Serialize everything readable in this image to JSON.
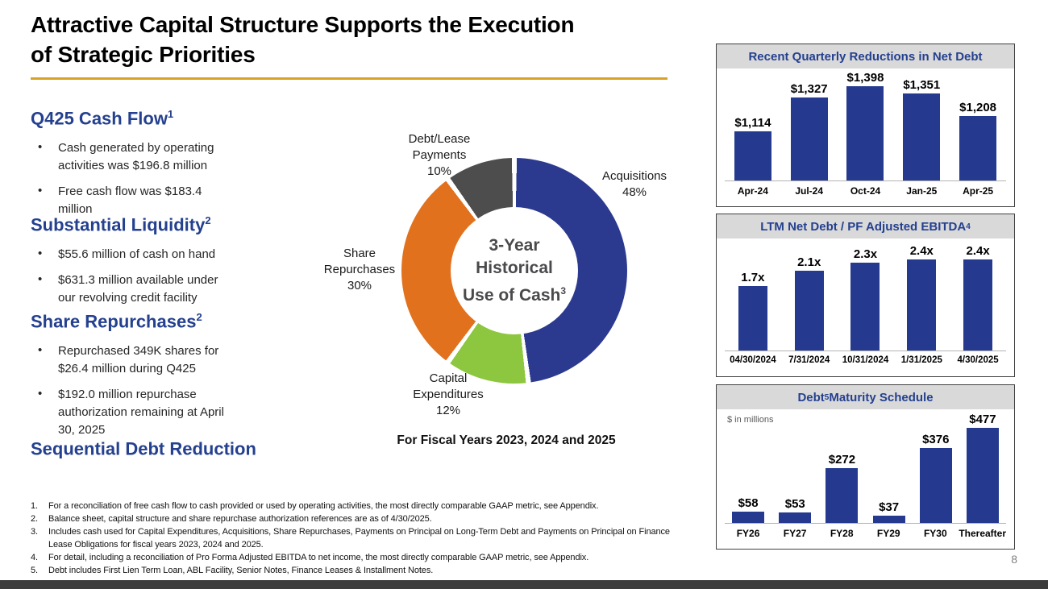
{
  "slide": {
    "title_line1": "Attractive Capital Structure Supports the Execution",
    "title_line2": "of Strategic Priorities",
    "page_number": "8"
  },
  "left_sections": [
    {
      "heading": "Q425 Cash Flow",
      "sup": "1",
      "bullets": [
        "Cash generated by operating activities was $196.8 million",
        "Free cash flow was $183.4 million"
      ]
    },
    {
      "heading": "Substantial Liquidity",
      "sup": "2",
      "bullets": [
        "$55.6 million of cash on hand",
        "$631.3 million available under our revolving credit facility"
      ]
    },
    {
      "heading": "Share Repurchases",
      "sup": "2",
      "bullets": [
        "Repurchased 349K shares for $26.4 million during Q425",
        "$192.0 million repurchase authorization remaining at April 30, 2025"
      ]
    },
    {
      "heading": "Sequential Debt Reduction",
      "sup": "",
      "bullets": []
    }
  ],
  "donut": {
    "labels": {
      "debt_lease": "Debt/Lease\nPayments\n10%",
      "acquisitions": "Acquisitions\n48%",
      "share_repurchases": "Share\nRepurchases\n30%",
      "capital_expenditures": "Capital\nExpenditures\n12%"
    },
    "center": {
      "line1": "3-Year",
      "line2": "Historical",
      "line3": "Use of Cash",
      "sup": "3"
    },
    "caption": "For Fiscal Years 2023, 2024 and 2025"
  },
  "chart_data": [
    {
      "type": "pie",
      "subtype": "donut",
      "title": "3-Year Historical Use of Cash",
      "title_sup": "3",
      "caption": "For Fiscal Years 2023, 2024 and 2025",
      "segments": [
        {
          "label": "Acquisitions",
          "pct": 48,
          "color": "#2B3A8F"
        },
        {
          "label": "Capital Expenditures",
          "pct": 12,
          "color": "#8DC63F"
        },
        {
          "label": "Share Repurchases",
          "pct": 30,
          "color": "#E2711D"
        },
        {
          "label": "Debt/Lease Payments",
          "pct": 10,
          "color": "#4D4D4D"
        }
      ],
      "start_angle": "top",
      "direction": "clockwise"
    },
    {
      "type": "bar",
      "title_pre": "Recent Quarterly Reductions in Net Debt",
      "title_sup": "",
      "title_post": "",
      "categories": [
        "Apr-24",
        "Jul-24",
        "Oct-24",
        "Jan-25",
        "Apr-25"
      ],
      "values": [
        1114,
        1327,
        1398,
        1351,
        1208
      ],
      "value_labels": [
        "$1,114",
        "$1,327",
        "$1,398",
        "$1,351",
        "$1,208"
      ],
      "ylim": [
        800,
        1500
      ],
      "bar_color": "#253A8E",
      "grid": false,
      "legend": "none"
    },
    {
      "type": "bar",
      "title_pre": "LTM Net Debt / PF Adjusted EBITDA",
      "title_sup": "4",
      "title_post": "",
      "categories": [
        "04/30/2024",
        "7/31/2024",
        "10/31/2024",
        "1/31/2025",
        "4/30/2025"
      ],
      "values": [
        1.7,
        2.1,
        2.3,
        2.4,
        2.4
      ],
      "value_labels": [
        "1.7x",
        "2.1x",
        "2.3x",
        "2.4x",
        "2.4x"
      ],
      "ylim": [
        0,
        2.9
      ],
      "bar_color": "#253A8E",
      "grid": false,
      "legend": "none"
    },
    {
      "type": "bar",
      "title_pre": "Debt",
      "title_sup": "5",
      "title_post": " Maturity Schedule",
      "units_note": "$ in millions",
      "categories": [
        "FY26",
        "FY27",
        "FY28",
        "FY29",
        "FY30",
        "Thereafter"
      ],
      "values": [
        58,
        53,
        272,
        37,
        376,
        477
      ],
      "value_labels": [
        "$58",
        "$53",
        "$272",
        "$37",
        "$376",
        "$477"
      ],
      "ylim": [
        0,
        560
      ],
      "bar_color": "#253A8E",
      "grid": false,
      "legend": "none"
    }
  ],
  "footnotes": [
    {
      "num": "1.",
      "text": "For a reconciliation of free cash flow to cash provided or used by operating activities, the most directly comparable GAAP metric, see Appendix."
    },
    {
      "num": "2.",
      "text": "Balance sheet, capital structure and share repurchase authorization references are as of 4/30/2025."
    },
    {
      "num": "3.",
      "text": "Includes cash used for Capital Expenditures, Acquisitions, Share Repurchases, Payments on Principal on Long-Term Debt and Payments on Principal on Finance Lease Obligations for fiscal years 2023, 2024 and 2025."
    },
    {
      "num": "4.",
      "text": "For detail, including a reconciliation of Pro Forma Adjusted EBITDA to net income, the most directly comparable GAAP metric, see Appendix."
    },
    {
      "num": "5.",
      "text": "Debt includes First Lien Term Loan, ABL Facility, Senior Notes, Finance Leases & Installment Notes."
    }
  ],
  "colors": {
    "heading_blue": "#24408F",
    "bar_blue": "#253A8E",
    "donut_blue": "#2B3A8F",
    "donut_orange": "#E2711D",
    "donut_green": "#8DC63F",
    "donut_gray": "#4D4D4D",
    "title_underline_gold": "#D9A226",
    "chart_header_bg": "#D9D9D9",
    "bottom_bar": "#3C3C3C"
  }
}
